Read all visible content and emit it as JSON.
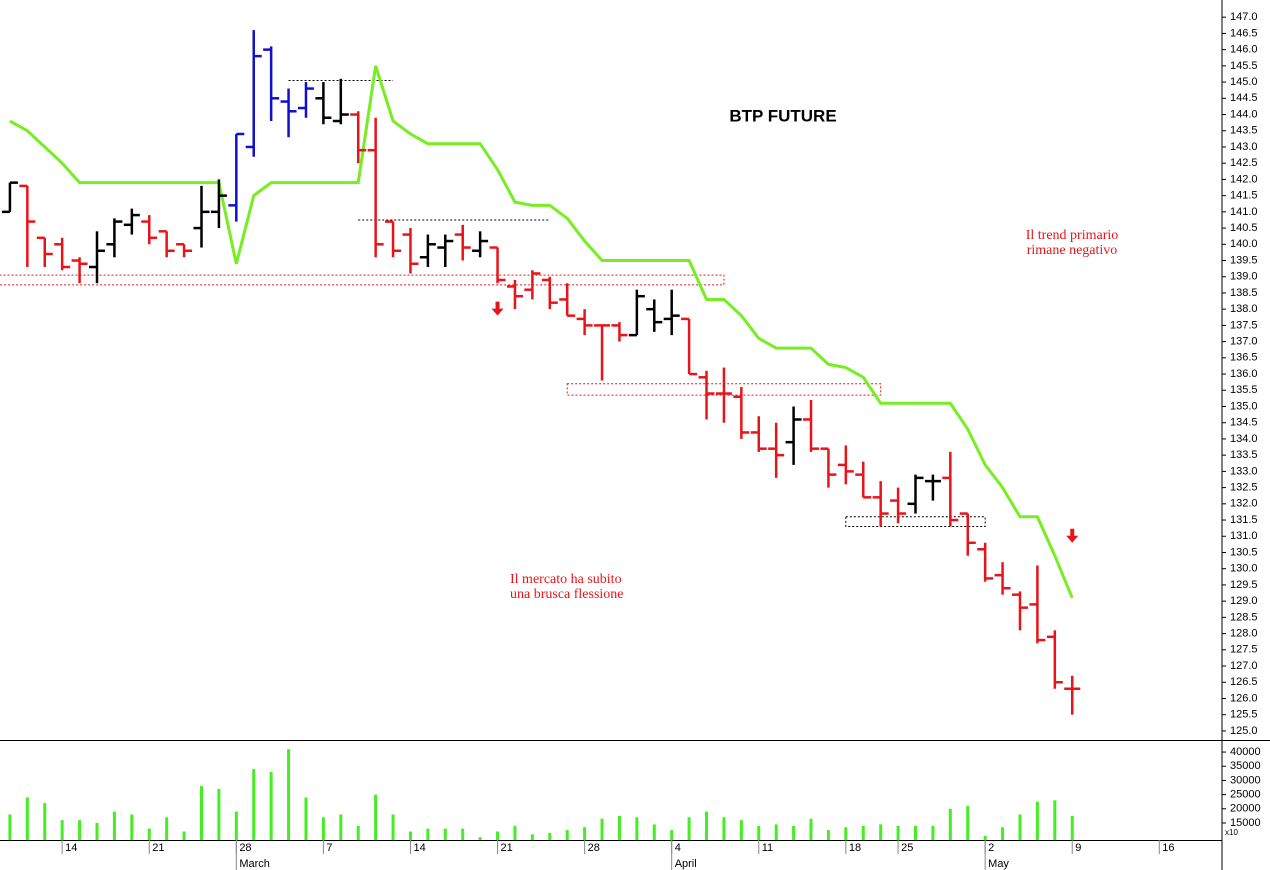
{
  "chart_data": {
    "type": "ohlc",
    "title": "BTP FUTURE",
    "annotations": [
      "Il trend primario",
      "rimane negativo",
      "Il mercato ha subito",
      "una brusca flessione"
    ],
    "xlim": [
      -0.57,
      69.6
    ],
    "ylim": [
      124.72,
      147.53
    ],
    "yticks": [
      {
        "value": 125,
        "label": "125.0"
      },
      125.5,
      {
        "value": 126,
        "label": "126.0"
      },
      126.5,
      {
        "value": 127,
        "label": "127.0"
      },
      127.5,
      {
        "value": 128,
        "label": "128.0"
      },
      128.5,
      {
        "value": 129,
        "label": "129.0"
      },
      129.5,
      {
        "value": 130,
        "label": "130.0"
      },
      130.5,
      {
        "value": 131,
        "label": "131.0"
      },
      131.5,
      {
        "value": 132,
        "label": "132.0"
      },
      132.5,
      {
        "value": 133,
        "label": "133.0"
      },
      133.5,
      {
        "value": 134,
        "label": "134.0"
      },
      134.5,
      {
        "value": 135,
        "label": "135.0"
      },
      135.5,
      {
        "value": 136,
        "label": "136.0"
      },
      136.5,
      {
        "value": 137,
        "label": "137.0"
      },
      137.5,
      {
        "value": 138,
        "label": "138.0"
      },
      138.5,
      {
        "value": 139,
        "label": "139.0"
      },
      139.5,
      {
        "value": 140,
        "label": "140.0"
      },
      140.5,
      {
        "value": 141,
        "label": "141.0"
      },
      141.5,
      {
        "value": 142,
        "label": "142.0"
      },
      142.5,
      {
        "value": 143,
        "label": "143.0"
      },
      143.5,
      {
        "value": 144,
        "label": "144.0"
      },
      144.5,
      {
        "value": 145,
        "label": "145.0"
      },
      145.5,
      {
        "value": 146,
        "label": "146.0"
      },
      146.5,
      {
        "value": 147,
        "label": "147.0"
      }
    ],
    "xticks": [
      {
        "value": 3,
        "label": "14"
      },
      {
        "value": 8,
        "label": "21"
      },
      {
        "value": 13,
        "label": "28"
      },
      {
        "value": 18,
        "label": "7"
      },
      {
        "value": 23,
        "label": "14"
      },
      {
        "value": 28,
        "label": "21"
      },
      {
        "value": 33,
        "label": "28"
      },
      {
        "value": 38,
        "label": "4"
      },
      {
        "value": 43,
        "label": "11"
      },
      {
        "value": 48,
        "label": "18"
      },
      {
        "value": 51,
        "label": "25"
      },
      {
        "value": 56,
        "label": "2"
      },
      {
        "value": 61,
        "label": "9"
      },
      {
        "value": 66,
        "label": "16"
      }
    ],
    "month_ticks": [
      {
        "value": 13,
        "label": "March"
      },
      {
        "value": 38,
        "label": "April"
      },
      {
        "value": 56,
        "label": "May"
      }
    ],
    "open": [
      141.0,
      141.8,
      140.2,
      140.0,
      139.5,
      139.3,
      140.0,
      140.6,
      140.7,
      140.4,
      140.0,
      140.5,
      141.0,
      141.2,
      143.0,
      146.0,
      144.4,
      144.2,
      144.5,
      143.8,
      144.0,
      142.9,
      140.7,
      140.3,
      139.6,
      139.9,
      140.3,
      139.8,
      139.9,
      138.7,
      138.6,
      138.9,
      138.3,
      137.7,
      137.5,
      137.5,
      137.2,
      138.0,
      137.7,
      137.7,
      135.9,
      135.4,
      135.3,
      134.2,
      133.7,
      133.9,
      134.6,
      133.7,
      133.2,
      132.9,
      132.2,
      132.1,
      132.0,
      132.7,
      132.8,
      131.7,
      130.6,
      129.8,
      129.2,
      128.9,
      127.9,
      126.3
    ],
    "high": [
      141.9,
      141.8,
      140.2,
      140.2,
      139.6,
      140.4,
      140.8,
      141.1,
      140.9,
      140.4,
      140.0,
      141.8,
      142.0,
      143.4,
      146.6,
      146.1,
      144.8,
      145.0,
      145.0,
      145.1,
      144.1,
      143.9,
      140.7,
      140.5,
      140.3,
      140.3,
      140.6,
      140.4,
      139.9,
      138.9,
      139.2,
      139.0,
      138.8,
      138.0,
      137.5,
      137.6,
      138.6,
      138.3,
      138.6,
      137.7,
      136.1,
      136.2,
      135.6,
      134.7,
      134.5,
      135.0,
      135.2,
      133.7,
      133.8,
      133.3,
      132.7,
      132.5,
      132.9,
      132.9,
      133.6,
      131.7,
      130.8,
      130.2,
      129.3,
      130.1,
      128.1,
      126.7
    ],
    "low": [
      141.0,
      139.3,
      139.3,
      139.2,
      138.8,
      138.8,
      139.6,
      140.3,
      140.0,
      139.6,
      139.6,
      139.9,
      140.5,
      140.7,
      142.7,
      143.8,
      143.3,
      143.9,
      143.7,
      143.7,
      142.5,
      139.6,
      139.6,
      139.1,
      139.3,
      139.3,
      139.5,
      139.6,
      138.8,
      138.0,
      138.3,
      138.0,
      137.8,
      137.2,
      135.8,
      137.0,
      137.2,
      137.3,
      137.2,
      136.0,
      134.6,
      134.5,
      134.0,
      133.6,
      132.8,
      133.2,
      133.6,
      132.5,
      132.6,
      132.2,
      131.3,
      131.4,
      131.7,
      132.1,
      131.3,
      130.4,
      129.6,
      129.2,
      128.1,
      127.7,
      126.3,
      125.5
    ],
    "close": [
      141.9,
      140.7,
      139.7,
      139.3,
      139.4,
      139.8,
      140.7,
      140.9,
      140.2,
      139.8,
      139.8,
      141.0,
      141.5,
      143.4,
      145.8,
      144.5,
      144.1,
      144.8,
      143.9,
      144.0,
      142.9,
      140.0,
      139.8,
      139.4,
      140.0,
      140.1,
      139.9,
      140.1,
      138.9,
      138.4,
      139.1,
      138.2,
      137.8,
      137.5,
      137.5,
      137.2,
      138.4,
      137.6,
      137.8,
      136.0,
      135.4,
      135.4,
      134.2,
      133.7,
      133.5,
      134.6,
      133.7,
      132.9,
      133.0,
      132.2,
      131.7,
      131.7,
      132.8,
      132.7,
      131.5,
      130.8,
      129.7,
      129.4,
      128.8,
      127.8,
      126.5,
      126.3
    ],
    "bar_colors": [
      "#000000",
      "#e8141a",
      "#e8141a",
      "#e8141a",
      "#e8141a",
      "#000000",
      "#000000",
      "#000000",
      "#e8141a",
      "#e8141a",
      "#e8141a",
      "#000000",
      "#000000",
      "#1010cc",
      "#1010cc",
      "#1010cc",
      "#1010cc",
      "#1010cc",
      "#000000",
      "#000000",
      "#e8141a",
      "#e8141a",
      "#e8141a",
      "#e8141a",
      "#000000",
      "#000000",
      "#e8141a",
      "#000000",
      "#e8141a",
      "#e8141a",
      "#e8141a",
      "#e8141a",
      "#e8141a",
      "#e8141a",
      "#e8141a",
      "#e8141a",
      "#000000",
      "#000000",
      "#000000",
      "#e8141a",
      "#e8141a",
      "#e8141a",
      "#e8141a",
      "#e8141a",
      "#e8141a",
      "#000000",
      "#e8141a",
      "#e8141a",
      "#e8141a",
      "#e8141a",
      "#e8141a",
      "#e8141a",
      "#000000",
      "#000000",
      "#e8141a",
      "#e8141a",
      "#e8141a",
      "#e8141a",
      "#e8141a",
      "#e8141a",
      "#e8141a",
      "#e8141a"
    ],
    "trend_line": {
      "color": "#77ee22",
      "values": [
        143.8,
        143.5,
        143.0,
        142.5,
        141.9,
        141.9,
        141.9,
        141.9,
        141.9,
        141.9,
        141.9,
        141.9,
        141.9,
        139.4,
        141.5,
        141.9,
        141.9,
        141.9,
        141.9,
        141.9,
        141.9,
        145.5,
        143.8,
        143.4,
        143.1,
        143.1,
        143.1,
        143.1,
        142.3,
        141.3,
        141.2,
        141.2,
        140.8,
        140.1,
        139.5,
        139.5,
        139.5,
        139.5,
        139.5,
        139.5,
        138.3,
        138.3,
        137.8,
        137.1,
        136.8,
        136.8,
        136.8,
        136.3,
        136.2,
        135.9,
        135.1,
        135.1,
        135.1,
        135.1,
        135.1,
        134.3,
        133.2,
        132.5,
        131.6,
        131.6,
        130.4,
        129.1
      ]
    },
    "levels": [
      {
        "top": 145.05,
        "from": 16,
        "to": 22,
        "color": "#000000"
      },
      {
        "top": 140.75,
        "from": 20,
        "to": 31,
        "color": "#000000"
      },
      {
        "top": 139.05,
        "bottom": 138.75,
        "from": -0.6,
        "to": 41,
        "color": "#e8141a"
      },
      {
        "top": 135.7,
        "bottom": 135.35,
        "from": 32,
        "to": 50,
        "color": "#e8141a"
      },
      {
        "top": 131.6,
        "bottom": 131.3,
        "from": 48,
        "to": 56,
        "color": "#000000"
      }
    ],
    "signals": [
      {
        "x": 28,
        "price": 137.8,
        "color": "#e8141a"
      },
      {
        "x": 61,
        "price": 130.8,
        "color": "#e8141a"
      }
    ],
    "volume": {
      "color": "#44ee22",
      "ylim": [
        9000,
        43900
      ],
      "yticks": [
        15000,
        20000,
        25000,
        30000,
        35000,
        40000
      ],
      "multiplier": "x10",
      "values": [
        18000,
        24000,
        22000,
        16000,
        16000,
        15000,
        19000,
        18000,
        13000,
        17000,
        12000,
        28000,
        27000,
        19000,
        34000,
        33000,
        41000,
        24000,
        17000,
        18000,
        14000,
        25000,
        18000,
        12000,
        13000,
        13000,
        13000,
        10000,
        12000,
        14000,
        11000,
        11500,
        12500,
        13500,
        16500,
        17500,
        17000,
        14500,
        12500,
        17000,
        19000,
        17000,
        16000,
        14000,
        14500,
        14000,
        16500,
        12500,
        13500,
        14000,
        14500,
        14000,
        14000,
        14000,
        20000,
        21000,
        10500,
        13500,
        18000,
        22500,
        23000,
        17500
      ]
    }
  }
}
